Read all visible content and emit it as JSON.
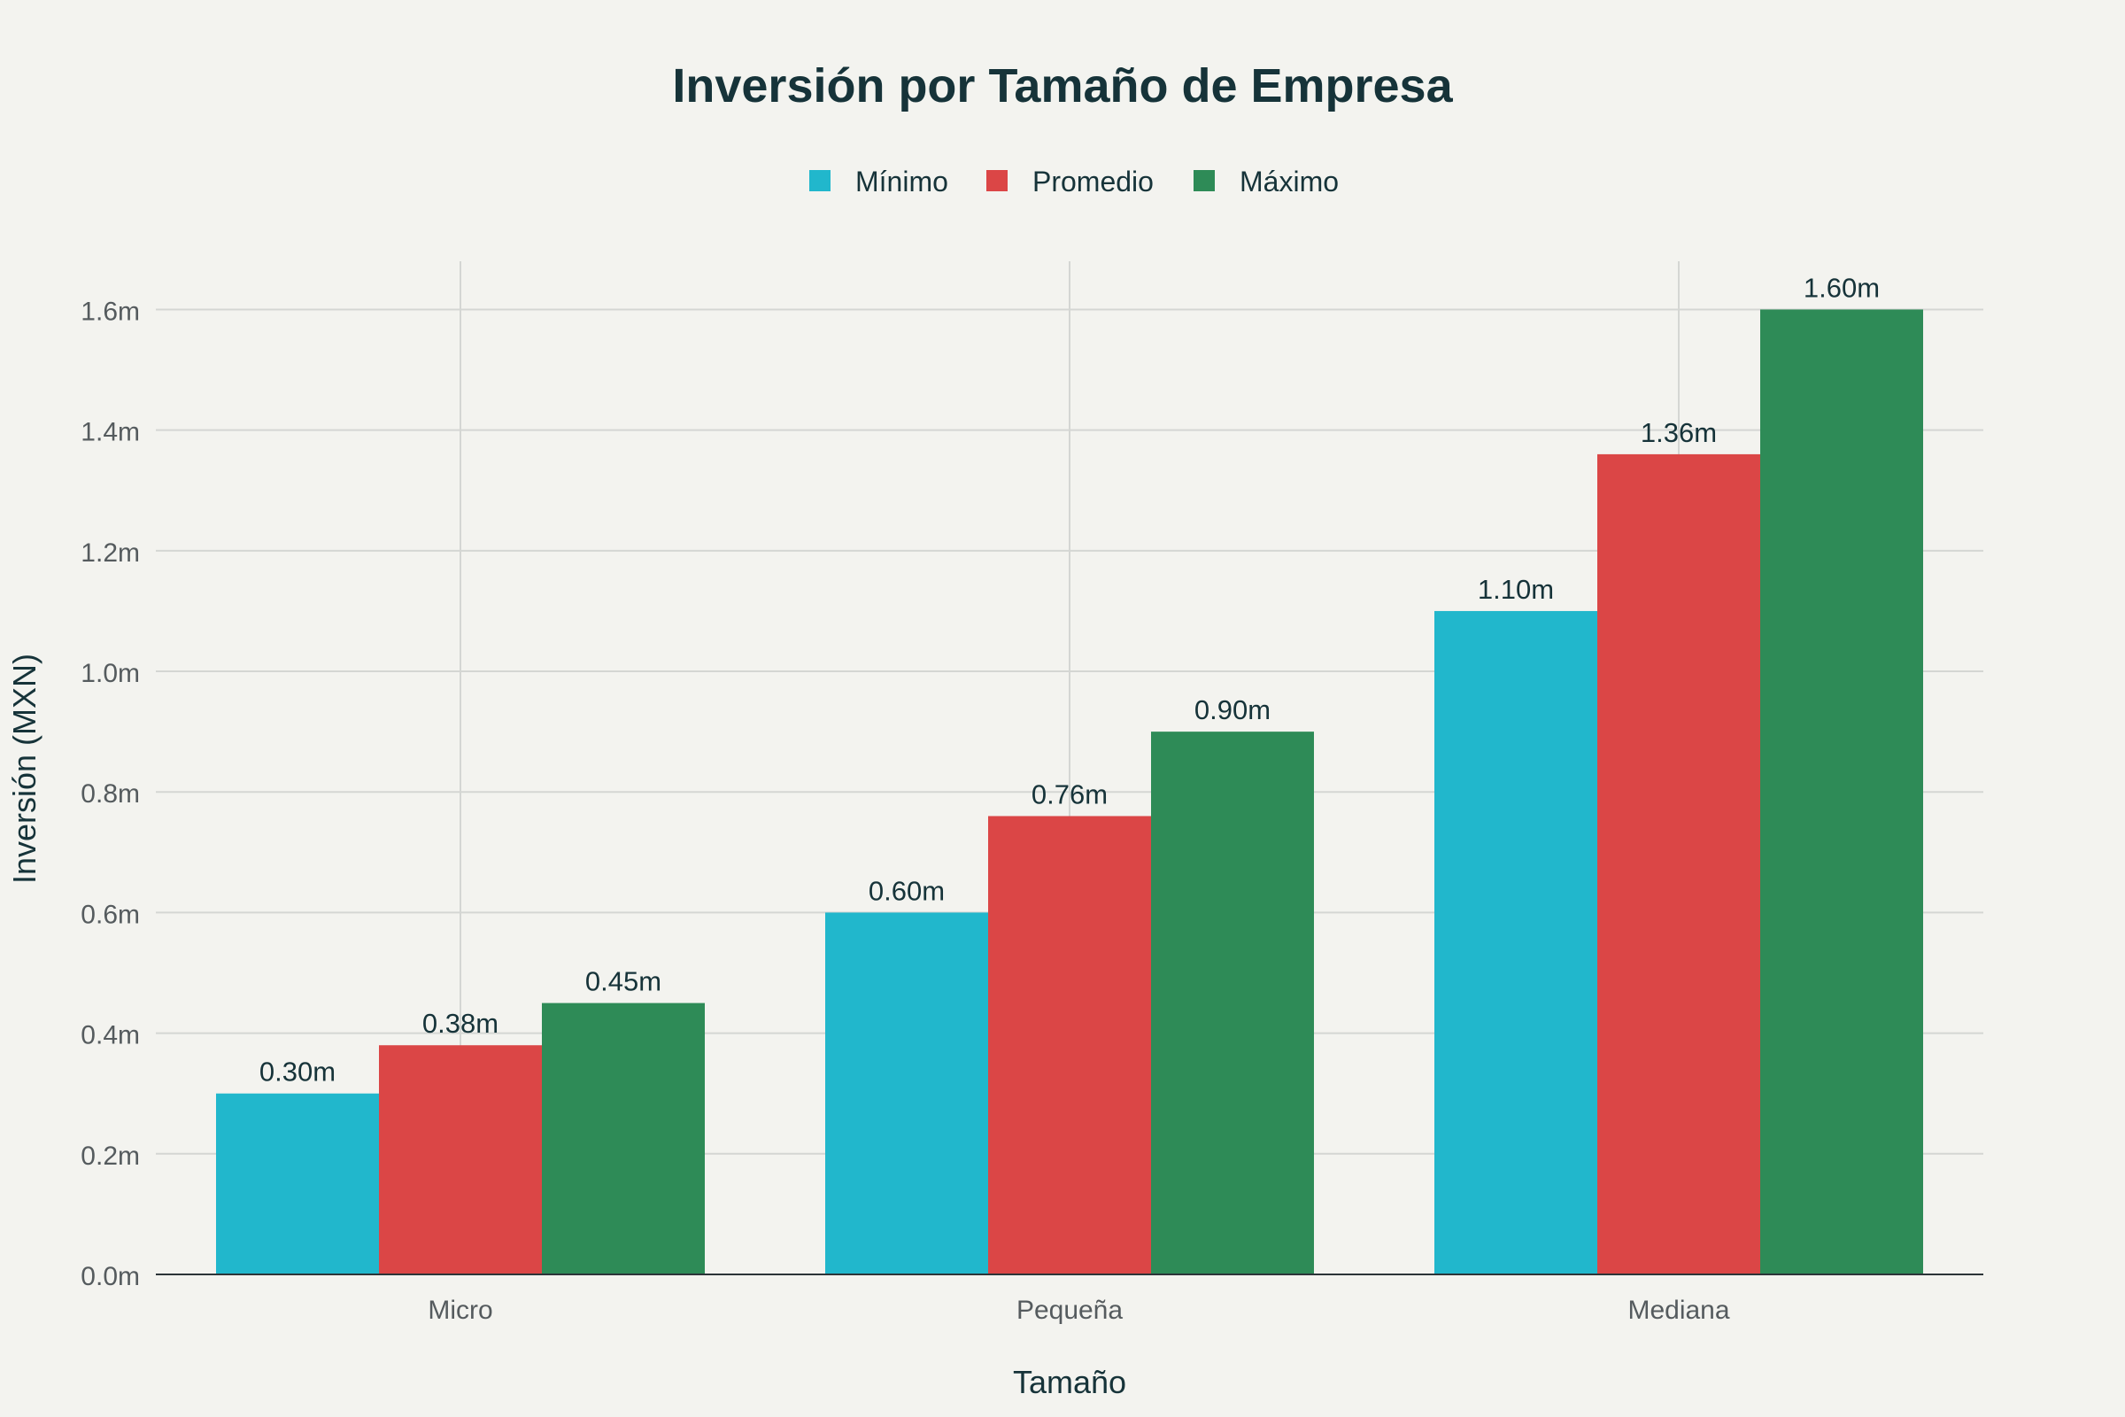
{
  "chart_data": {
    "type": "bar",
    "title": "Inversión por Tamaño de Empresa",
    "xlabel": "Tamaño",
    "ylabel": "Inversión (MXN)",
    "categories": [
      "Micro",
      "Pequeña",
      "Mediana"
    ],
    "series": [
      {
        "name": "Mínimo",
        "color": "#21b7cc",
        "values": [
          0.3,
          0.6,
          1.1
        ],
        "labels": [
          "0.30m",
          "0.60m",
          "1.10m"
        ]
      },
      {
        "name": "Promedio",
        "color": "#db4646",
        "values": [
          0.38,
          0.76,
          1.36
        ],
        "labels": [
          "0.38m",
          "0.76m",
          "1.36m"
        ]
      },
      {
        "name": "Máximo",
        "color": "#2e8b57",
        "values": [
          0.45,
          0.9,
          1.6
        ],
        "labels": [
          "0.45m",
          "0.90m",
          "1.60m"
        ]
      }
    ],
    "ylim": [
      0,
      1.68
    ],
    "yticks": [
      0,
      0.2,
      0.4,
      0.6,
      0.8,
      1.0,
      1.2,
      1.4,
      1.6
    ],
    "ytick_labels": [
      "0.0m",
      "0.2m",
      "0.4m",
      "0.6m",
      "0.8m",
      "1.0m",
      "1.2m",
      "1.4m",
      "1.6m"
    ],
    "grid": true,
    "legend_position": "top-center",
    "colors": {
      "background": "#f3f3ef",
      "text": "#163339",
      "tick_text": "#555b5e",
      "grid": "#d4d6d3",
      "axis": "#2c3438"
    }
  }
}
